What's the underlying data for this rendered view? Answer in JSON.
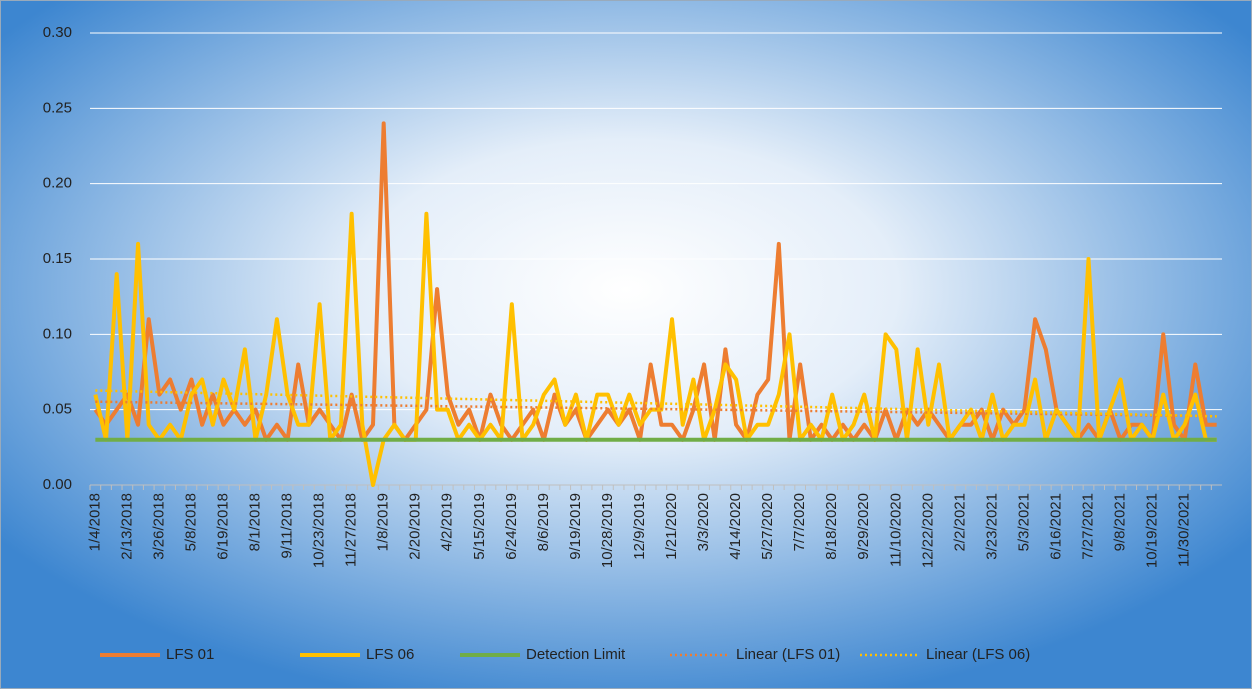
{
  "chart_data": {
    "type": "line",
    "categories": [
      "1/4/2018",
      null,
      null,
      "2/13/2018",
      null,
      null,
      "3/26/2018",
      null,
      null,
      "5/8/2018",
      null,
      null,
      "6/19/2018",
      null,
      null,
      "8/1/2018",
      null,
      null,
      "9/11/2018",
      null,
      null,
      "10/23/2018",
      null,
      null,
      "11/27/2018",
      null,
      null,
      "1/8/2019",
      null,
      null,
      "2/20/2019",
      null,
      null,
      "4/2/2019",
      null,
      null,
      "5/15/2019",
      null,
      null,
      "6/24/2019",
      null,
      null,
      "8/6/2019",
      null,
      null,
      "9/19/2019",
      null,
      null,
      "10/28/2019",
      null,
      null,
      "12/9/2019",
      null,
      null,
      "1/21/2020",
      null,
      null,
      "3/3/2020",
      null,
      null,
      "4/14/2020",
      null,
      null,
      "5/27/2020",
      null,
      null,
      "7/7/2020",
      null,
      null,
      "8/18/2020",
      null,
      null,
      "9/29/2020",
      null,
      null,
      "11/10/2020",
      null,
      null,
      "12/22/2020",
      null,
      null,
      "2/2/2021",
      null,
      null,
      "3/23/2021",
      null,
      null,
      "5/3/2021",
      null,
      null,
      "6/16/2021",
      null,
      null,
      "7/27/2021",
      null,
      null,
      "9/8/2021",
      null,
      null,
      "10/19/2021",
      null,
      null,
      "11/30/2021",
      null,
      null,
      null
    ],
    "series": [
      {
        "name": "LFS 01",
        "color": "#ed7d31",
        "values": [
          0.05,
          0.04,
          0.05,
          0.06,
          0.04,
          0.11,
          0.06,
          0.07,
          0.05,
          0.07,
          0.04,
          0.06,
          0.04,
          0.05,
          0.04,
          0.05,
          0.03,
          0.04,
          0.03,
          0.08,
          0.04,
          0.05,
          0.04,
          0.03,
          0.06,
          0.03,
          0.04,
          0.24,
          0.04,
          0.03,
          0.04,
          0.05,
          0.13,
          0.06,
          0.04,
          0.05,
          0.03,
          0.06,
          0.04,
          0.03,
          0.04,
          0.05,
          0.03,
          0.06,
          0.04,
          0.05,
          0.03,
          0.04,
          0.05,
          0.04,
          0.05,
          0.03,
          0.08,
          0.04,
          0.04,
          0.03,
          0.05,
          0.08,
          0.03,
          0.09,
          0.04,
          0.03,
          0.06,
          0.07,
          0.16,
          0.03,
          0.08,
          0.03,
          0.04,
          0.03,
          0.04,
          0.03,
          0.04,
          0.03,
          0.05,
          0.03,
          0.05,
          0.04,
          0.05,
          0.04,
          0.03,
          0.04,
          0.04,
          0.05,
          0.03,
          0.05,
          0.04,
          0.05,
          0.11,
          0.09,
          0.05,
          0.04,
          0.03,
          0.04,
          0.03,
          0.05,
          0.03,
          0.04,
          0.04,
          0.03,
          0.1,
          0.04,
          0.03,
          0.08,
          0.04,
          0.04
        ]
      },
      {
        "name": "LFS 06",
        "color": "#ffc000",
        "values": [
          0.06,
          0.03,
          0.14,
          0.03,
          0.16,
          0.04,
          0.03,
          0.04,
          0.03,
          0.06,
          0.07,
          0.04,
          0.07,
          0.05,
          0.09,
          0.03,
          0.06,
          0.11,
          0.06,
          0.04,
          0.04,
          0.12,
          0.03,
          0.04,
          0.18,
          0.04,
          0.0,
          0.03,
          0.04,
          0.03,
          0.03,
          0.18,
          0.05,
          0.05,
          0.03,
          0.04,
          0.03,
          0.04,
          0.03,
          0.12,
          0.03,
          0.04,
          0.06,
          0.07,
          0.04,
          0.06,
          0.03,
          0.06,
          0.06,
          0.04,
          0.06,
          0.04,
          0.05,
          0.05,
          0.11,
          0.04,
          0.07,
          0.03,
          0.05,
          0.08,
          0.07,
          0.03,
          0.04,
          0.04,
          0.06,
          0.1,
          0.03,
          0.04,
          0.03,
          0.06,
          0.03,
          0.04,
          0.06,
          0.03,
          0.1,
          0.09,
          0.03,
          0.09,
          0.04,
          0.08,
          0.03,
          0.04,
          0.05,
          0.03,
          0.06,
          0.03,
          0.04,
          0.04,
          0.07,
          0.03,
          0.05,
          0.04,
          0.03,
          0.15,
          0.03,
          0.05,
          0.07,
          0.03,
          0.04,
          0.03,
          0.06,
          0.03,
          0.04,
          0.06,
          0.03,
          0.03
        ]
      },
      {
        "name": "Detection Limit",
        "color": "#70ad47",
        "values": [
          0.03,
          0.03,
          0.03,
          0.03,
          0.03,
          0.03,
          0.03,
          0.03,
          0.03,
          0.03,
          0.03,
          0.03,
          0.03,
          0.03,
          0.03,
          0.03,
          0.03,
          0.03,
          0.03,
          0.03,
          0.03,
          0.03,
          0.03,
          0.03,
          0.03,
          0.03,
          0.03,
          0.03,
          0.03,
          0.03,
          0.03,
          0.03,
          0.03,
          0.03,
          0.03,
          0.03,
          0.03,
          0.03,
          0.03,
          0.03,
          0.03,
          0.03,
          0.03,
          0.03,
          0.03,
          0.03,
          0.03,
          0.03,
          0.03,
          0.03,
          0.03,
          0.03,
          0.03,
          0.03,
          0.03,
          0.03,
          0.03,
          0.03,
          0.03,
          0.03,
          0.03,
          0.03,
          0.03,
          0.03,
          0.03,
          0.03,
          0.03,
          0.03,
          0.03,
          0.03,
          0.03,
          0.03,
          0.03,
          0.03,
          0.03,
          0.03,
          0.03,
          0.03,
          0.03,
          0.03,
          0.03,
          0.03,
          0.03,
          0.03,
          0.03,
          0.03,
          0.03,
          0.03,
          0.03,
          0.03,
          0.03,
          0.03,
          0.03,
          0.03,
          0.03,
          0.03,
          0.03,
          0.03,
          0.03,
          0.03,
          0.03,
          0.03,
          0.03,
          0.03,
          0.03,
          0.03
        ]
      }
    ],
    "trendlines": [
      {
        "name": "Linear (LFS 01)",
        "series": 0,
        "color": "#ed7d31"
      },
      {
        "name": "Linear (LFS 06)",
        "series": 1,
        "color": "#ffc000"
      }
    ],
    "ylim": [
      0,
      0.3
    ],
    "yticks": [
      {
        "value": 0,
        "label": "0.00"
      },
      {
        "value": 0.05,
        "label": "0.05"
      },
      {
        "value": 0.1,
        "label": "0.10"
      },
      {
        "value": 0.15,
        "label": "0.15"
      },
      {
        "value": 0.2,
        "label": "0.20"
      },
      {
        "value": 0.25,
        "label": "0.25"
      },
      {
        "value": 0.3,
        "label": "0.30"
      }
    ],
    "grid": true,
    "legend": "bottom"
  }
}
